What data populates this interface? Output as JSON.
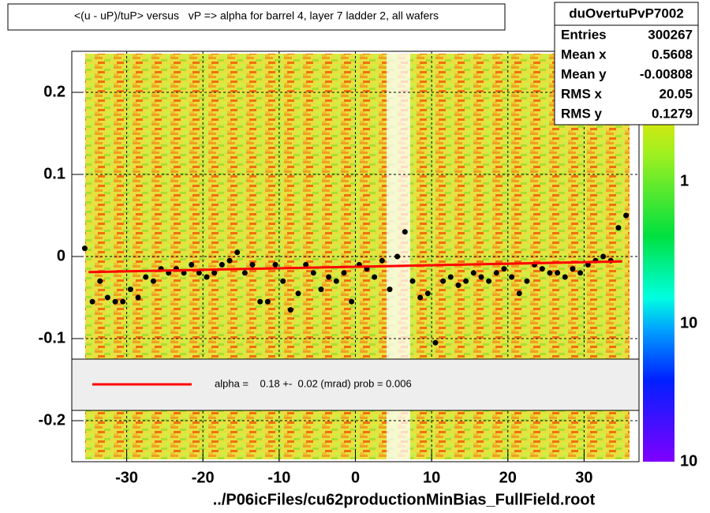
{
  "chart_data": {
    "type": "scatter",
    "title": "<(u - uP)/tuP> versus   vP => alpha for barrel 4, layer 7 ladder 2, all wafers",
    "x_label": "../P06icFiles/cu62productionMinBias_FullField.root",
    "xlim": [
      -37.2,
      37.2
    ],
    "ylim": [
      -0.25,
      0.25
    ],
    "xticks": [
      -30,
      -20,
      -10,
      0,
      10,
      20,
      30
    ],
    "yticks": [
      -0.2,
      -0.1,
      0,
      0.1,
      0.2
    ],
    "grid": true,
    "series": [
      {
        "color": "#000000",
        "x": [
          -35.5,
          -34.5,
          -33.5,
          -32.5,
          -31.5,
          -30.5,
          -29.5,
          -28.5,
          -27.5,
          -26.5,
          -25.5,
          -24.5,
          -23.5,
          -22.5,
          -21.5,
          -20.5,
          -19.5,
          -18.5,
          -17.5,
          -16.5,
          -15.5,
          -14.5,
          -13.5,
          -12.5,
          -11.5,
          -10.5,
          -9.5,
          -8.5,
          -7.5,
          -6.5,
          -5.5,
          -4.5,
          -3.5,
          -2.5,
          -1.5,
          -0.5,
          0.5,
          1.5,
          2.5,
          3.5,
          4.5,
          5.5,
          6.5,
          7.5,
          8.5,
          9.5,
          10.5,
          11.5,
          12.5,
          13.5,
          14.5,
          15.5,
          16.5,
          17.5,
          18.5,
          19.5,
          20.5,
          21.5,
          22.5,
          23.5,
          24.5,
          25.5,
          26.5,
          27.5,
          28.5,
          29.5,
          30.5,
          31.5,
          32.5,
          33.5,
          34.5,
          35.5
        ],
        "values": [
          0.01,
          -0.055,
          -0.03,
          -0.05,
          -0.055,
          -0.055,
          -0.04,
          -0.05,
          -0.025,
          -0.03,
          -0.015,
          -0.02,
          -0.015,
          -0.02,
          -0.01,
          -0.02,
          -0.025,
          -0.02,
          -0.01,
          -0.005,
          0.005,
          -0.02,
          -0.01,
          -0.055,
          -0.055,
          -0.01,
          -0.03,
          -0.065,
          -0.045,
          -0.01,
          -0.02,
          -0.04,
          -0.025,
          -0.03,
          -0.02,
          -0.055,
          -0.01,
          -0.015,
          -0.025,
          -0.005,
          -0.04,
          0.0,
          0.03,
          -0.03,
          -0.05,
          -0.045,
          -0.105,
          -0.03,
          -0.025,
          -0.035,
          -0.03,
          -0.02,
          -0.025,
          -0.03,
          -0.02,
          -0.015,
          -0.025,
          -0.045,
          -0.03,
          -0.01,
          -0.015,
          -0.02,
          -0.02,
          -0.025,
          -0.015,
          -0.02,
          -0.01,
          -0.005,
          0.0,
          -0.005,
          0.035,
          0.05
        ]
      },
      {
        "color": "#ff0000",
        "line": true,
        "x": [
          -35,
          35
        ],
        "values": [
          -0.019,
          -0.006
        ]
      }
    ],
    "legend_text": "alpha =    0.18 +-  0.02 (mrad) prob = 0.006",
    "stats": {
      "name": "duOvertuPvP7002",
      "rows": [
        {
          "label": "Entries",
          "value": 300267
        },
        {
          "label": "Mean x",
          "value": 0.5608
        },
        {
          "label": "Mean y",
          "value": -0.00808
        },
        {
          "label": "RMS x",
          "value": 20.05
        },
        {
          "label": "RMS y",
          "value": 0.1279
        }
      ]
    },
    "colorbar_labels": [
      "1",
      "10",
      "10"
    ]
  }
}
